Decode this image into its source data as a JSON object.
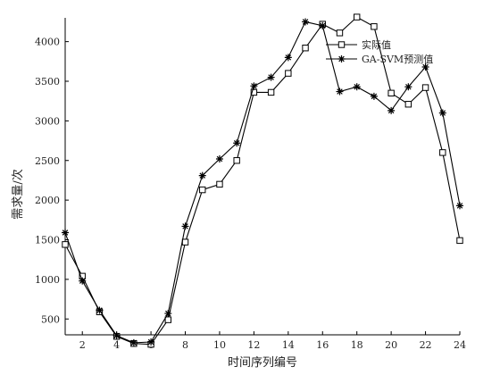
{
  "chart_data": {
    "type": "line",
    "title": "",
    "xlabel": "时间序列编号",
    "ylabel": "需求量/次",
    "xlim": [
      1,
      24
    ],
    "ylim": [
      300,
      4300
    ],
    "xticks": [
      2,
      4,
      6,
      8,
      10,
      12,
      14,
      16,
      18,
      20,
      22,
      24
    ],
    "yticks": [
      500,
      1000,
      1500,
      2000,
      2500,
      3000,
      3500,
      4000
    ],
    "legend_position": "top-right",
    "x": [
      1,
      2,
      3,
      4,
      5,
      6,
      7,
      8,
      9,
      10,
      11,
      12,
      13,
      14,
      15,
      16,
      17,
      18,
      19,
      20,
      21,
      22,
      23,
      24
    ],
    "series": [
      {
        "name": "实际值",
        "marker": "square",
        "values": [
          1440,
          1040,
          590,
          280,
          190,
          180,
          490,
          1470,
          2130,
          2200,
          2500,
          3360,
          3360,
          3600,
          3920,
          4220,
          4110,
          4310,
          4190,
          3350,
          3210,
          3420,
          2600,
          1490
        ]
      },
      {
        "name": "GA-SVM预测值",
        "marker": "star",
        "values": [
          1590,
          980,
          610,
          290,
          200,
          210,
          570,
          1670,
          2310,
          2520,
          2720,
          3440,
          3550,
          3800,
          4250,
          4200,
          3370,
          3430,
          3310,
          3130,
          3430,
          3680,
          3100,
          1930
        ]
      }
    ]
  }
}
